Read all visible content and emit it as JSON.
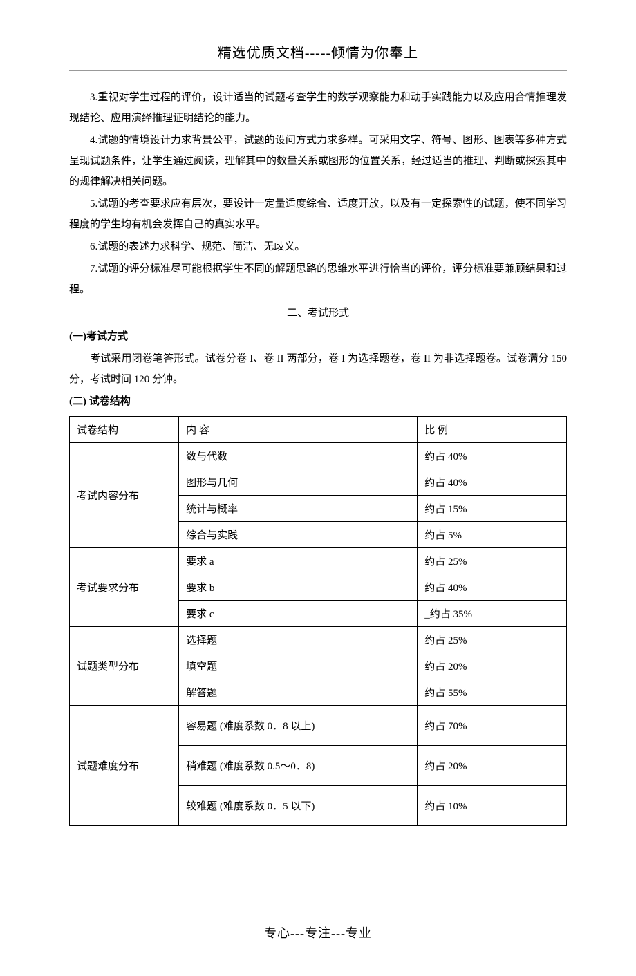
{
  "header": "精选优质文档-----倾情为你奉上",
  "paragraphs": {
    "p3": "3.重视对学生过程的评价，设计适当的试题考查学生的数学观察能力和动手实践能力以及应用合情推理发现结论、应用演绎推理证明结论的能力。",
    "p4": "4.试题的情境设计力求背景公平，试题的设问方式力求多样。可采用文字、符号、图形、图表等多种方式呈现试题条件，让学生通过阅读，理解其中的数量关系或图形的位置关系，经过适当的推理、判断或探索其中的规律解决相关问题。",
    "p5": "5.试题的考查要求应有层次，要设计一定量适度综合、适度开放，以及有一定探索性的试题，使不同学习程度的学生均有机会发挥自己的真实水平。",
    "p6": "6.试题的表述力求科学、规范、简洁、无歧义。",
    "p7": "7.试题的评分标准尽可能根据学生不同的解题思路的思维水平进行恰当的评价，评分标准要兼顾结果和过程。"
  },
  "section2_title": "二、考试形式",
  "sub1_title": "(一)考试方式",
  "sub1_body": "考试采用闭卷笔答形式。试卷分卷 I、卷 II 两部分，卷 I 为选择题卷，卷 II 为非选择题卷。试卷满分 150 分，考试时间 120 分钟。",
  "sub2_title": "(二) 试卷结构",
  "table": {
    "headers": {
      "c1": "试卷结构",
      "c2": "内 容",
      "c3": "比 例"
    },
    "groups": [
      {
        "label": "考试内容分布",
        "rows": [
          {
            "content": "数与代数",
            "ratio": "约占 40%"
          },
          {
            "content": "图形与几何",
            "ratio": "约占 40%"
          },
          {
            "content": "统计与概率",
            "ratio": "约占 15%"
          },
          {
            "content": "综合与实践",
            "ratio": "约占 5%"
          }
        ]
      },
      {
        "label": "考试要求分布",
        "rows": [
          {
            "content": "要求 a",
            "ratio": "约占 25%"
          },
          {
            "content": "要求 b",
            "ratio": "约占 40%"
          },
          {
            "content": "要求 c",
            "ratio": "_约占 35%"
          }
        ]
      },
      {
        "label": "试题类型分布",
        "rows": [
          {
            "content": "选择题",
            "ratio": "约占 25%"
          },
          {
            "content": "填空题",
            "ratio": "约占 20%"
          },
          {
            "content": "解答题",
            "ratio": "约占 55%"
          }
        ]
      },
      {
        "label": "试题难度分布",
        "tall": true,
        "rows": [
          {
            "content": "容易题 (难度系数 0．8 以上)",
            "ratio": "约占 70%"
          },
          {
            "content": "稍难题 (难度系数 0.5～0．8)",
            "ratio": "约占 20%"
          },
          {
            "content": "较难题 (难度系数 0．5 以下)",
            "ratio": "约占 10%"
          }
        ]
      }
    ]
  },
  "footer": "专心---专注---专业"
}
